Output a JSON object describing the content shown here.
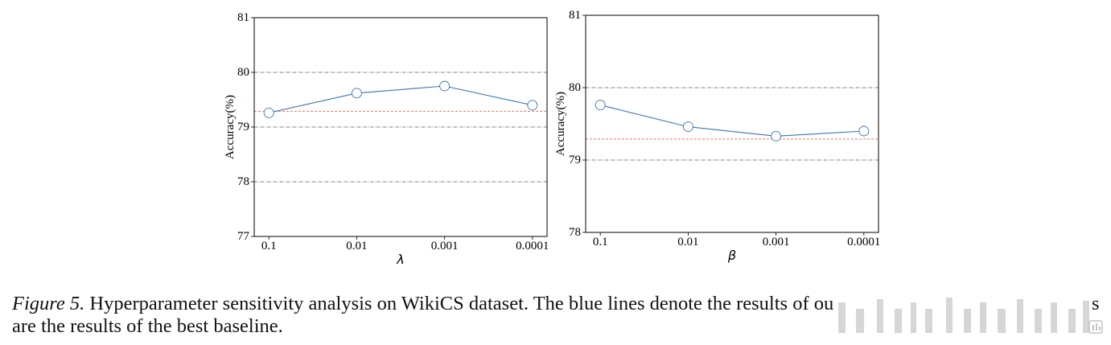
{
  "caption": {
    "label": "Figure 5.",
    "text_start": "Hyperparameter sensitivity analysis on WikiCS dataset. The blue lines denote the results of ou",
    "text_end": "s",
    "line2": "are the results of the best baseline."
  },
  "chart_data": [
    {
      "type": "line",
      "categories": [
        "0.1",
        "0.01",
        "0.001",
        "0.0001"
      ],
      "series": [
        {
          "values": [
            79.26,
            79.62,
            79.75,
            79.4
          ],
          "color": "#3d72b4"
        }
      ],
      "reference_line": {
        "y": 79.29,
        "color": "#e5604c"
      },
      "xlabel": "λ",
      "ylabel": "Accuracy(%)",
      "ylim": [
        77,
        81
      ],
      "yticks": [
        77,
        78,
        79,
        80,
        81
      ],
      "grid": true
    },
    {
      "type": "line",
      "categories": [
        "0.1",
        "0.01",
        "0.001",
        "0.0001"
      ],
      "series": [
        {
          "values": [
            79.76,
            79.46,
            79.33,
            79.4
          ],
          "color": "#3d72b4"
        }
      ],
      "reference_line": {
        "y": 79.29,
        "color": "#e5604c"
      },
      "xlabel": "β",
      "ylabel": "Accuracy(%)",
      "ylim": [
        78,
        81
      ],
      "yticks": [
        78,
        79,
        80,
        81
      ],
      "grid": true
    }
  ]
}
